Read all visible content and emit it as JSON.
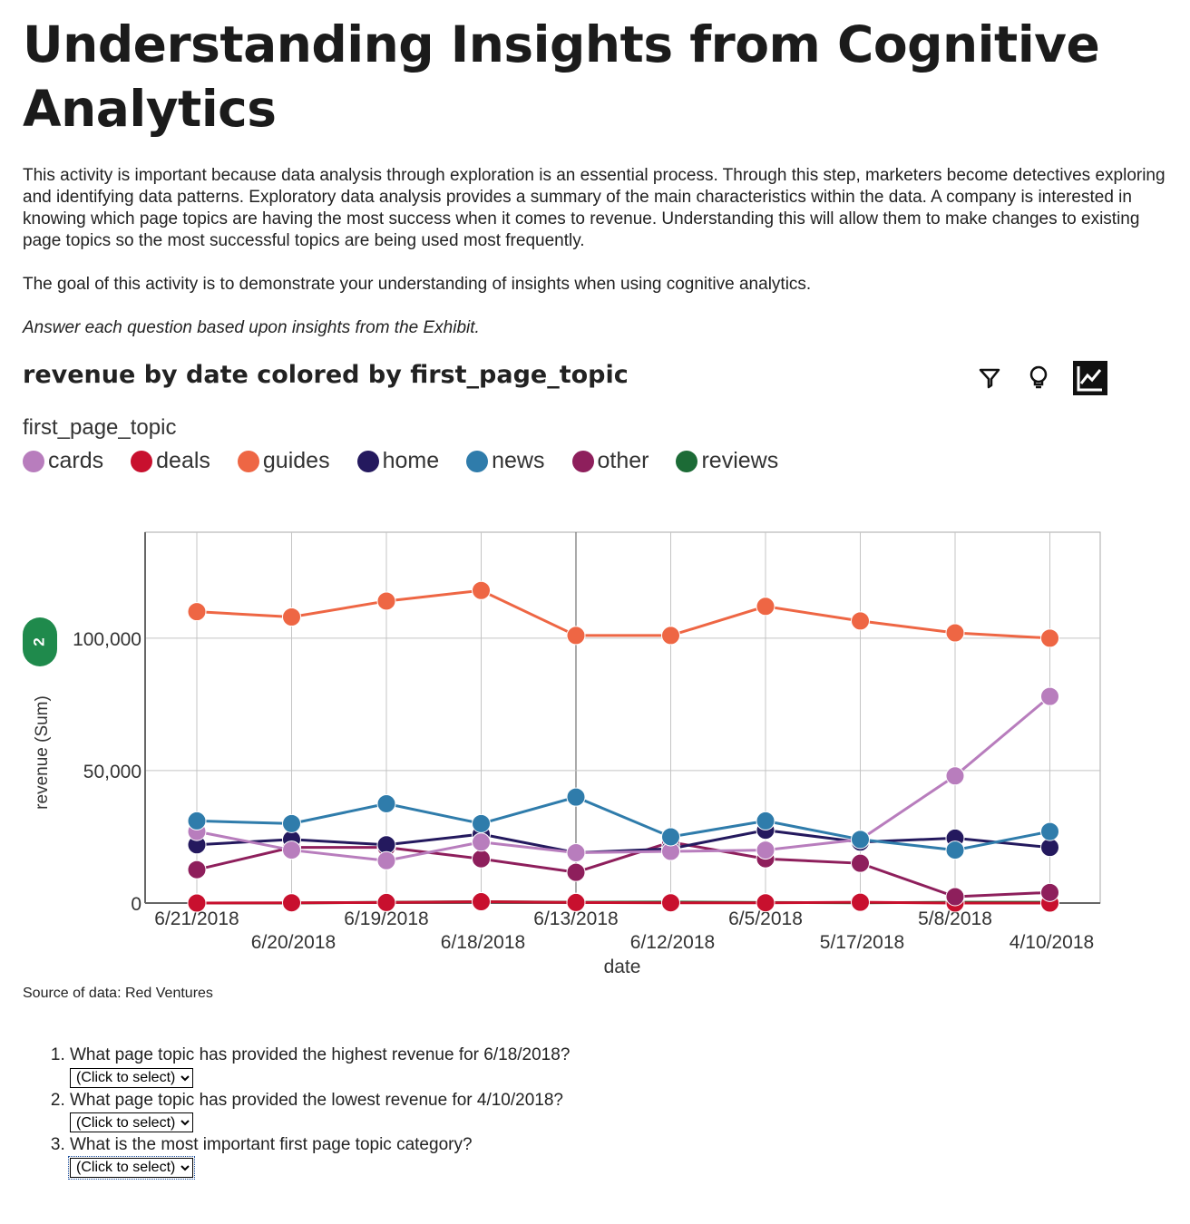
{
  "title": "Understanding Insights from Cognitive Analytics",
  "intro": "This activity is important because data analysis through exploration is an essential process. Through this step, marketers become detectives exploring and identifying data patterns. Exploratory data analysis provides a summary of the main characteristics within the data. A company is interested in knowing which page topics are having the most success when it comes to revenue. Understanding this will allow them to make changes to existing page topics so the most successful topics are being used most frequently.",
  "goal": "The goal of this activity is to demonstrate your understanding of insights when using cognitive analytics.",
  "instruction": "Answer each question based upon insights from the Exhibit.",
  "exhibit": {
    "title": "revenue by date colored by first_page_topic",
    "icons": [
      "filter-icon",
      "lightbulb-icon",
      "chart-icon"
    ],
    "badge": "2",
    "source": "Source of data: Red Ventures"
  },
  "chart_data": {
    "type": "line",
    "legend_title": "first_page_topic",
    "legend_position": "top-left",
    "xlabel": "date",
    "ylabel": "revenue (Sum)",
    "ylim": [
      0,
      140000
    ],
    "yticks": [
      0,
      50000,
      100000
    ],
    "ytick_labels": [
      "0",
      "50,000",
      "100,000"
    ],
    "grid": true,
    "categories": [
      "6/21/2018",
      "6/20/2018",
      "6/19/2018",
      "6/18/2018",
      "6/13/2018",
      "6/12/2018",
      "6/5/2018",
      "5/17/2018",
      "5/8/2018",
      "4/10/2018"
    ],
    "series": [
      {
        "name": "cards",
        "color": "#b87dbd",
        "values": [
          27000,
          20000,
          16000,
          23000,
          19000,
          19500,
          20000,
          24000,
          48000,
          78000
        ]
      },
      {
        "name": "deals",
        "color": "#c8102e",
        "values": [
          0,
          100,
          200,
          500,
          200,
          100,
          100,
          300,
          0,
          0
        ]
      },
      {
        "name": "guides",
        "color": "#ee6644",
        "values": [
          110000,
          108000,
          114000,
          118000,
          101000,
          101000,
          112000,
          106500,
          102000,
          100000
        ]
      },
      {
        "name": "home",
        "color": "#24195e",
        "values": [
          22000,
          24000,
          22000,
          26000,
          19000,
          20500,
          27500,
          23000,
          24500,
          21000
        ]
      },
      {
        "name": "news",
        "color": "#2f7cab",
        "values": [
          31000,
          30000,
          37500,
          30000,
          40000,
          25000,
          31000,
          24000,
          20000,
          27000
        ]
      },
      {
        "name": "other",
        "color": "#8e1f5c",
        "values": [
          12600,
          21000,
          21000,
          16700,
          11600,
          23000,
          16700,
          15000,
          2400,
          4000
        ]
      },
      {
        "name": "reviews",
        "color": "#1c6b36",
        "values": [
          0,
          0,
          300,
          500,
          300,
          400,
          200,
          100,
          300,
          300
        ]
      }
    ]
  },
  "questions": [
    {
      "text": "What page topic has provided the highest revenue for 6/18/2018?",
      "select": "(Click to select)"
    },
    {
      "text": "What page topic has provided the lowest revenue for 4/10/2018?",
      "select": "(Click to select)"
    },
    {
      "text": "What is the most important first page topic category?",
      "select": "(Click to select)"
    }
  ]
}
